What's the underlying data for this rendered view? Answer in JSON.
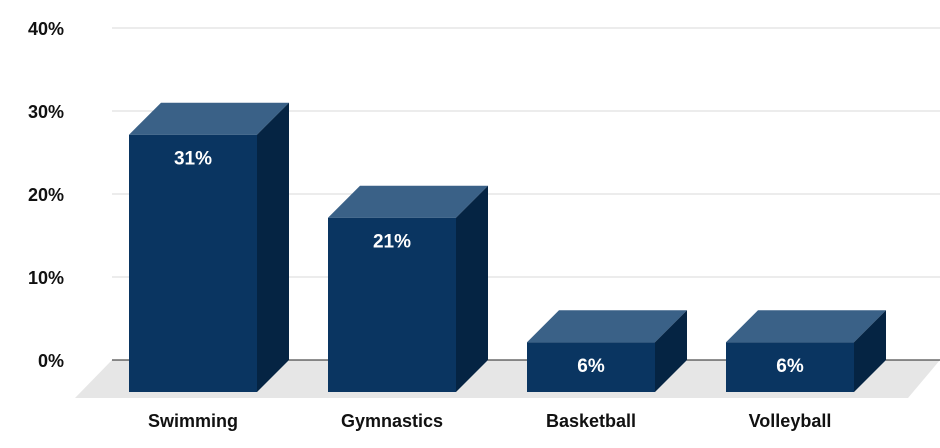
{
  "chart_data": {
    "type": "bar",
    "style": "3d",
    "categories": [
      "Swimming",
      "Gymnastics",
      "Basketball",
      "Volleyball"
    ],
    "values": [
      31,
      21,
      6,
      6
    ],
    "data_labels": [
      "31%",
      "21%",
      "6%",
      "6%"
    ],
    "ylim": [
      0,
      40
    ],
    "yticks": [
      0,
      10,
      20,
      30,
      40
    ],
    "ytick_labels": [
      "0%",
      "10%",
      "20%",
      "30%",
      "40%"
    ],
    "grid": true,
    "legend": "none",
    "colors": {
      "bar_front": "#0a3561",
      "bar_top": "#3a6187",
      "bar_side": "#052443",
      "floor": "#e6e6e6",
      "grid": "#d9d9d9",
      "axis_line": "#222222"
    }
  }
}
